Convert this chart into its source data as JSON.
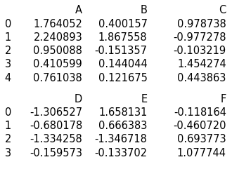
{
  "df1_header": [
    "",
    "A",
    "B",
    "C"
  ],
  "df1_rows": [
    [
      "0",
      "1.764052",
      "0.400157",
      "0.978738"
    ],
    [
      "1",
      "2.240893",
      "1.867558",
      "-0.977278"
    ],
    [
      "2",
      "0.950088",
      "-0.151357",
      "-0.103219"
    ],
    [
      "3",
      "0.410599",
      "0.144044",
      "1.454274"
    ],
    [
      "4",
      "0.761038",
      "0.121675",
      "0.443863"
    ]
  ],
  "df2_header": [
    "",
    "D",
    "E",
    "F"
  ],
  "df2_rows": [
    [
      "0",
      "-1.306527",
      "1.658131",
      "-0.118164"
    ],
    [
      "1",
      "-0.680178",
      "0.666383",
      "-0.460720"
    ],
    [
      "2",
      "-1.334258",
      "-1.346718",
      "0.693773"
    ],
    [
      "3",
      "-0.159573",
      "-0.133702",
      "1.077744"
    ]
  ],
  "bg_color": "#ffffff",
  "font_size": 10.5,
  "font_family": "DejaVu Sans"
}
